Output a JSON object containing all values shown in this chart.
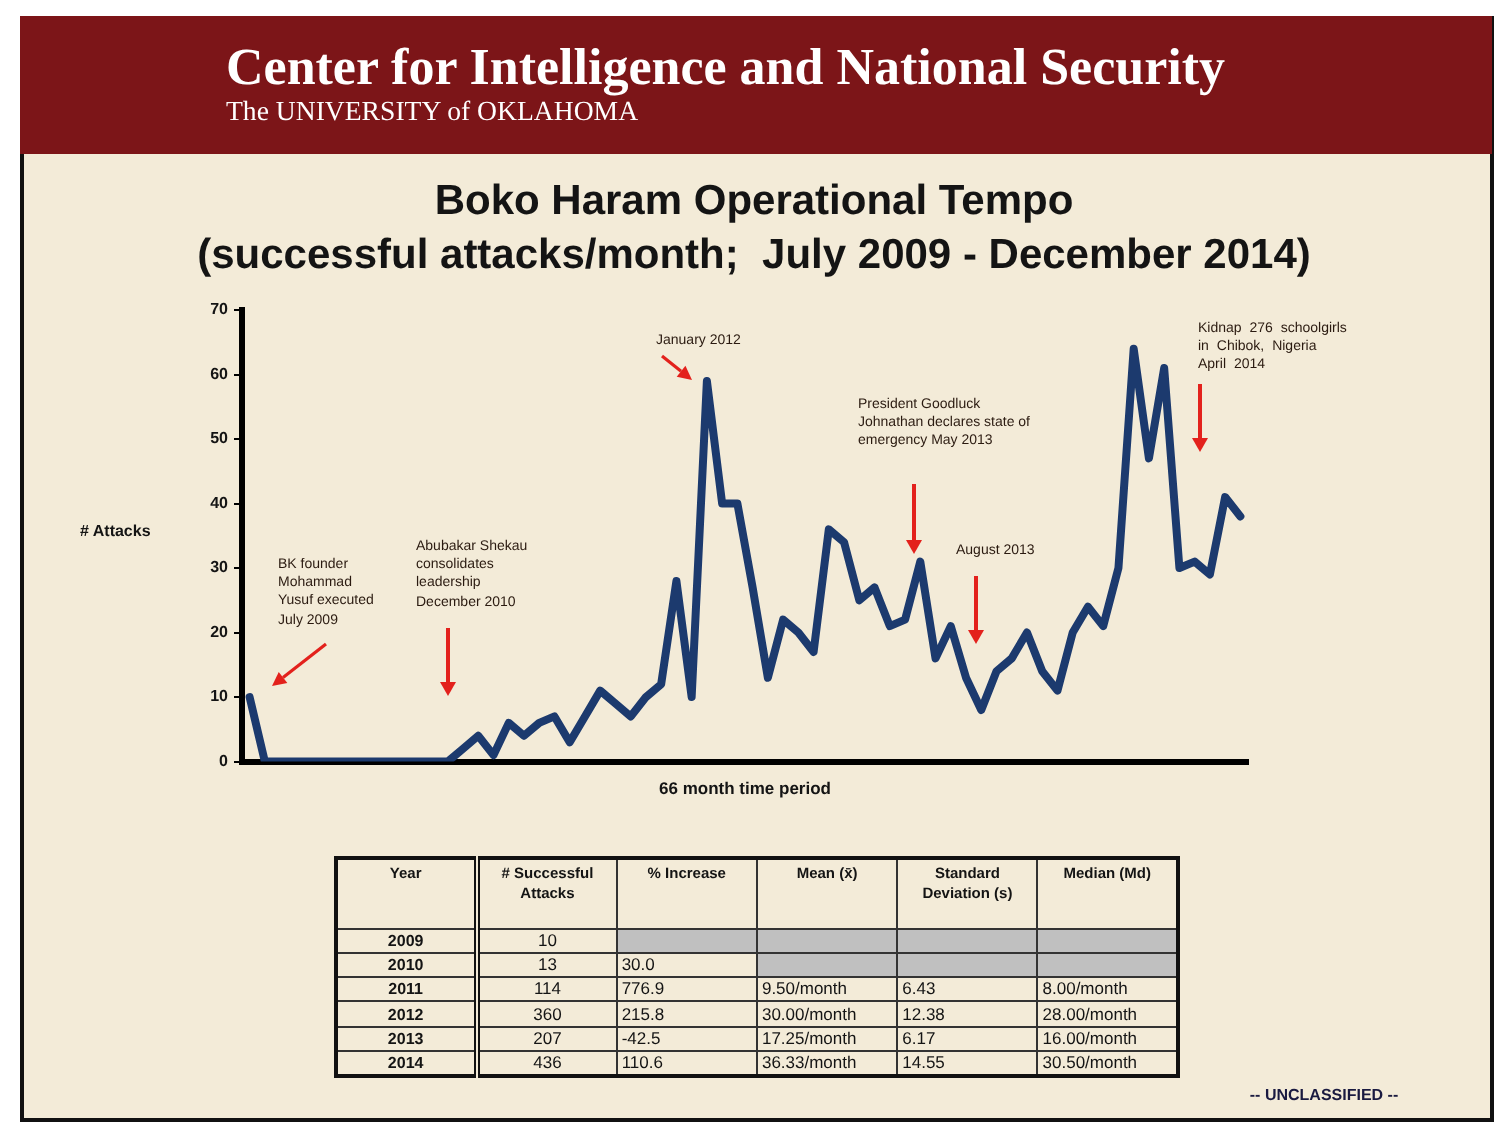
{
  "chart_data": {
    "type": "line",
    "title": "Boko Haram Operational Tempo",
    "subtitle": "(successful attacks/month;  July 2009 - December 2014)",
    "xlabel": "66 month time period",
    "ylabel": "# Attacks",
    "annotations": [
      "Center for Intelligence and National Security",
      "The UNIVERSITY of OKLAHOMA",
      "BK founder Mohammad Yusuf executed July 2009",
      "Abubakar Shekau consolidates leadership December 2010",
      "January 2012",
      "President Goodluck Johnathan declares state of emergency May 2013",
      "August 2013",
      "Kidnap 276 schoolgirls in Chibok, Nigeria April 2014",
      "Year",
      "# Successful Attacks",
      "% Increase",
      "Mean (x̄)",
      "Standard Deviation (s)",
      "Median (Md)",
      "2009",
      "10",
      "2010",
      "13",
      "30.0",
      "2011",
      "114",
      "776.9",
      "9.50/month",
      "6.43",
      "8.00/month",
      "2012",
      "360",
      "215.8",
      "30.00/month",
      "12.38",
      "28.00/month",
      "2013",
      "207",
      "-42.5",
      "17.25/month",
      "6.17",
      "16.00/month",
      "2014",
      "436",
      "110.6",
      "36.33/month",
      "14.55",
      "30.50/month",
      "-- UNCLASSIFIED --"
    ],
    "categories": [
      null,
      null,
      null,
      null,
      null,
      null,
      null,
      null,
      null,
      null,
      null,
      null,
      null,
      null,
      null,
      null,
      null,
      null,
      null,
      null,
      null,
      null,
      null,
      null,
      null,
      null,
      null,
      null,
      null,
      null,
      null,
      null,
      null,
      null,
      null,
      null,
      null,
      null,
      null,
      null,
      null,
      null,
      null,
      null,
      null,
      null,
      null,
      null,
      null,
      null,
      null,
      null,
      null,
      null,
      null,
      null,
      null,
      null,
      null,
      null,
      null,
      null,
      null,
      null,
      null,
      null
    ],
    "values": [
      10,
      0,
      0,
      0,
      0,
      0,
      0,
      0,
      0,
      0,
      0,
      0,
      0,
      0,
      2,
      4,
      1,
      6,
      4,
      6,
      7,
      3,
      7,
      11,
      9,
      7,
      10,
      12,
      28,
      10,
      59,
      40,
      40,
      27,
      13,
      22,
      20,
      17,
      36,
      34,
      25,
      27,
      21,
      22,
      31,
      16,
      21,
      13,
      8,
      14,
      16,
      20,
      14,
      11,
      20,
      24,
      21,
      30,
      64,
      47,
      61,
      30,
      31,
      29,
      41,
      38
    ],
    "color": "#1c3a6e",
    "ylim": [
      0,
      70
    ],
    "yticks": [
      0,
      10,
      20,
      30,
      40,
      50,
      60,
      70
    ],
    "marker": "none",
    "line_style": "solid"
  }
}
